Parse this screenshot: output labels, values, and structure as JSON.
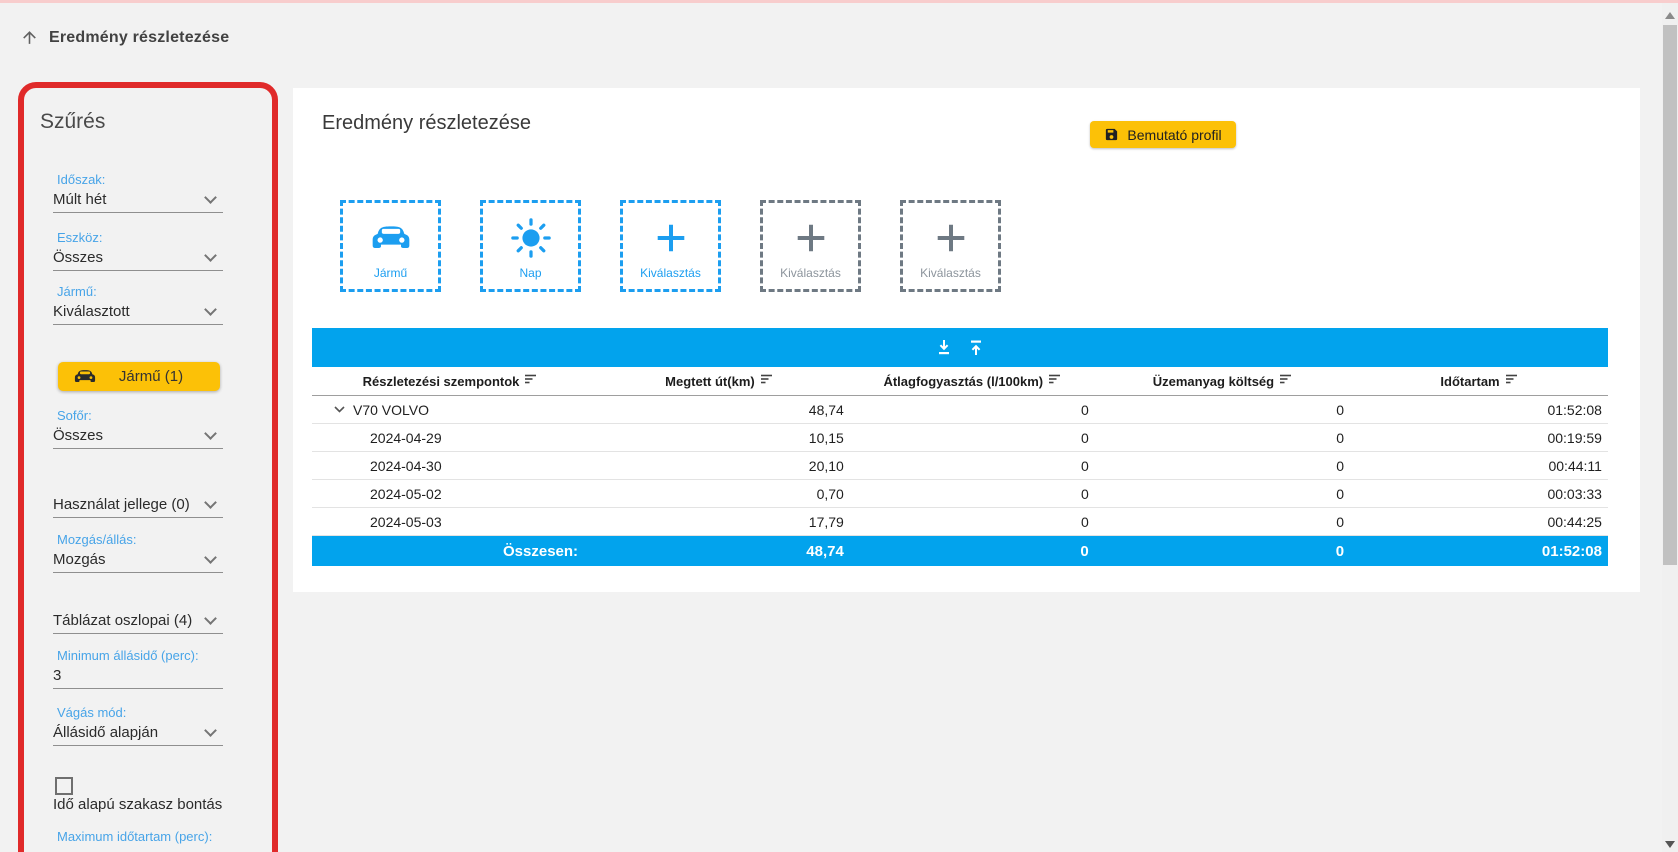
{
  "header": {
    "title": "Eredmény részletezése"
  },
  "sidebar": {
    "title": "Szűrés",
    "idoszak": {
      "label": "Időszak:",
      "value": "Múlt hét"
    },
    "eszkoz": {
      "label": "Eszköz:",
      "value": "Összes"
    },
    "jarmu": {
      "label": "Jármű:",
      "value": "Kiválasztott"
    },
    "vehicle_button": {
      "label": "Jármű (1)"
    },
    "sofor": {
      "label": "Sofőr:",
      "value": "Összes"
    },
    "hasznalat": {
      "value": "Használat jellege (0)"
    },
    "mozgas": {
      "label": "Mozgás/állás:",
      "value": "Mozgás"
    },
    "tablazat": {
      "value": "Táblázat oszlopai (4)"
    },
    "minimum": {
      "label": "Minimum állásidő (perc):",
      "value": "3"
    },
    "vagas": {
      "label": "Vágás mód:",
      "value": "Állásidő alapján"
    },
    "ido_alapu": {
      "label": "Idő alapú szakasz bontás",
      "checked": false
    },
    "maximum": {
      "label": "Maximum időtartam (perc):"
    }
  },
  "main": {
    "title": "Eredmény részletezése",
    "save_button": {
      "label": "Bemutató profil"
    },
    "tiles": [
      {
        "label": "Jármű",
        "icon": "car",
        "state": "active"
      },
      {
        "label": "Nap",
        "icon": "sun",
        "state": "active"
      },
      {
        "label": "Kiválasztás",
        "icon": "plus",
        "state": "active"
      },
      {
        "label": "Kiválasztás",
        "icon": "plus",
        "state": "inactive"
      },
      {
        "label": "Kiválasztás",
        "icon": "plus",
        "state": "inactive"
      }
    ],
    "table": {
      "headers": [
        "Részletezési szempontok",
        "Megtett út(km)",
        "Átlagfogyasztás (l/100km)",
        "Üzemanyag költség",
        "Időtartam"
      ],
      "rows": [
        {
          "name": "V70 VOLVO",
          "level": 0,
          "expanded": true,
          "values": [
            "48,74",
            "0",
            "0",
            "01:52:08"
          ]
        },
        {
          "name": "2024-04-29",
          "level": 1,
          "values": [
            "10,15",
            "0",
            "0",
            "00:19:59"
          ]
        },
        {
          "name": "2024-04-30",
          "level": 1,
          "values": [
            "20,10",
            "0",
            "0",
            "00:44:11"
          ]
        },
        {
          "name": "2024-05-02",
          "level": 1,
          "values": [
            "0,70",
            "0",
            "0",
            "00:03:33"
          ]
        },
        {
          "name": "2024-05-03",
          "level": 1,
          "values": [
            "17,79",
            "0",
            "0",
            "00:44:25"
          ]
        }
      ],
      "summary": {
        "label": "Összesen:",
        "values": [
          "48,74",
          "0",
          "0",
          "01:52:08"
        ]
      }
    }
  },
  "colors": {
    "accent_blue": "#02a3ed",
    "tile_blue": "#1c9ef0",
    "label_blue": "#47a4e8",
    "accent_yellow": "#fcc107",
    "outline_red": "#e02a2a"
  }
}
